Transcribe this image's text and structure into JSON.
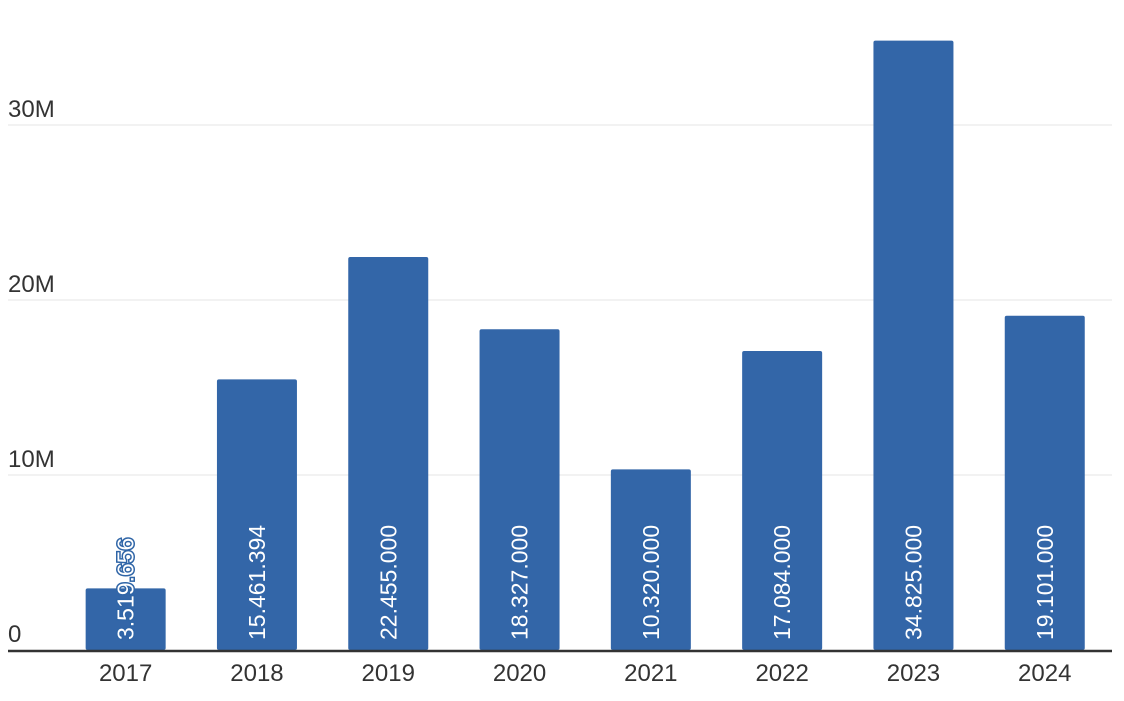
{
  "colors": {
    "bar": "#3366a8",
    "grid": "#e6e6e6",
    "axis": "#333333",
    "text": "#333333"
  },
  "chart_data": {
    "type": "bar",
    "title": "",
    "xlabel": "",
    "ylabel": "",
    "categories": [
      "2017",
      "2018",
      "2019",
      "2020",
      "2021",
      "2022",
      "2023",
      "2024"
    ],
    "values": [
      3519656,
      15461394,
      22455000,
      18327000,
      10320000,
      17084000,
      34825000,
      19101000
    ],
    "data_labels": [
      "3.519.656",
      "15.461.394",
      "22.455.000",
      "18.327.000",
      "10.320.000",
      "17.084.000",
      "34.825.000",
      "19.101.000"
    ],
    "ylim": [
      0,
      36000000
    ],
    "yticks": [
      0,
      10000000,
      20000000,
      30000000
    ],
    "ytick_labels": [
      "0",
      "10M",
      "20M",
      "30M"
    ],
    "grid": true,
    "legend": "none"
  }
}
